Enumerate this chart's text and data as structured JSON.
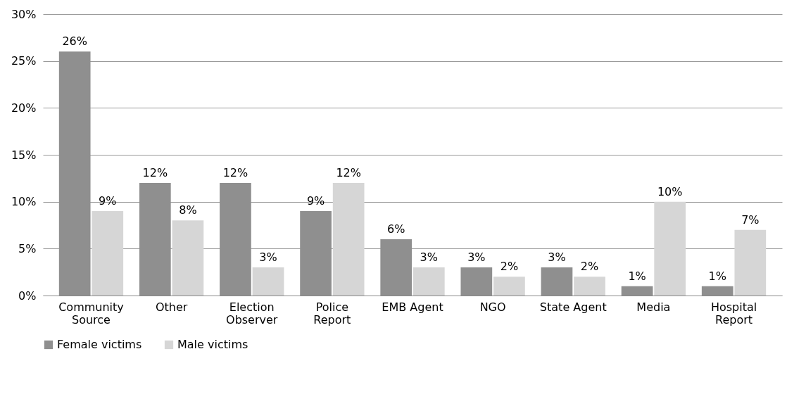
{
  "chart_data": {
    "type": "bar",
    "categories": [
      "Community Source",
      "Other",
      "Election Observer",
      "Police Report",
      "EMB Agent",
      "NGO",
      "State Agent",
      "Media",
      "Hospital Report"
    ],
    "series": [
      {
        "name": "Female victims",
        "color": "#8f8f8f",
        "values": [
          26,
          12,
          12,
          9,
          6,
          3,
          3,
          1,
          1
        ],
        "value_labels": [
          "26%",
          "12%",
          "12%",
          "9%",
          "6%",
          "3%",
          "3%",
          "1%",
          "1%"
        ]
      },
      {
        "name": "Male victims",
        "color": "#d6d6d6",
        "values": [
          9,
          8,
          3,
          12,
          3,
          2,
          2,
          10,
          7
        ],
        "value_labels": [
          "9%",
          "8%",
          "3%",
          "12%",
          "3%",
          "2%",
          "2%",
          "10%",
          "7%"
        ]
      }
    ],
    "ylim": [
      0,
      30
    ],
    "yticks": [
      {
        "value": 0,
        "label": "0%"
      },
      {
        "value": 5,
        "label": "5%"
      },
      {
        "value": 10,
        "label": "10%"
      },
      {
        "value": 15,
        "label": "15%"
      },
      {
        "value": 20,
        "label": "20%"
      },
      {
        "value": 25,
        "label": "25%"
      },
      {
        "value": 30,
        "label": "30%"
      }
    ],
    "grid": "y",
    "legend": "bottom"
  }
}
